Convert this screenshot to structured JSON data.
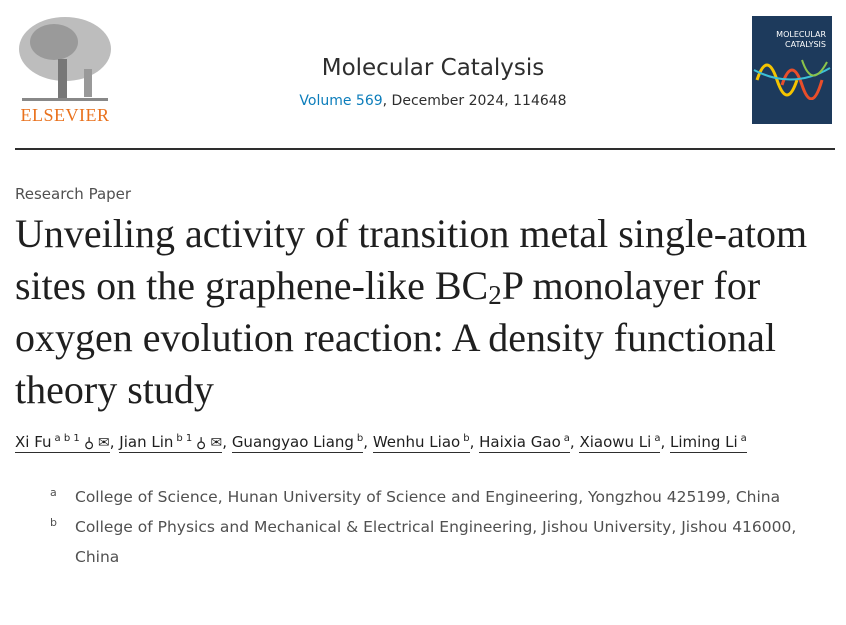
{
  "publisher": {
    "name": "ELSEVIER"
  },
  "journal": {
    "name": "Molecular Catalysis",
    "volume_link": "Volume 569",
    "volume_rest": ", December 2024, 114648",
    "cover_text": "MOLECULAR CATALYSIS"
  },
  "article": {
    "type": "Research Paper",
    "title_part1": "Unveiling activity of transition metal single-atom sites on the graphene-like BC",
    "title_sub": "2",
    "title_part2": "P monolayer for oxygen evolution reaction: A density functional theory study"
  },
  "authors": [
    {
      "name": "Xi Fu",
      "sup": "a b 1",
      "icons": true
    },
    {
      "name": "Jian Lin",
      "sup": "b 1",
      "icons": true
    },
    {
      "name": "Guangyao Liang",
      "sup": "b"
    },
    {
      "name": "Wenhu Liao",
      "sup": "b"
    },
    {
      "name": "Haixia Gao",
      "sup": "a"
    },
    {
      "name": "Xiaowu Li",
      "sup": "a"
    },
    {
      "name": "Liming Li",
      "sup": "a"
    }
  ],
  "affiliations": [
    {
      "label": "a",
      "text": "College of Science, Hunan University of Science and Engineering, Yongzhou 425199, China"
    },
    {
      "label": "b",
      "text": "College of Physics and Mechanical & Electrical Engineering, Jishou University, Jishou 416000, China"
    }
  ],
  "colors": {
    "link": "#0c7dbb",
    "elsevier_orange": "#e9711c",
    "cover": "#1d3a5c"
  }
}
